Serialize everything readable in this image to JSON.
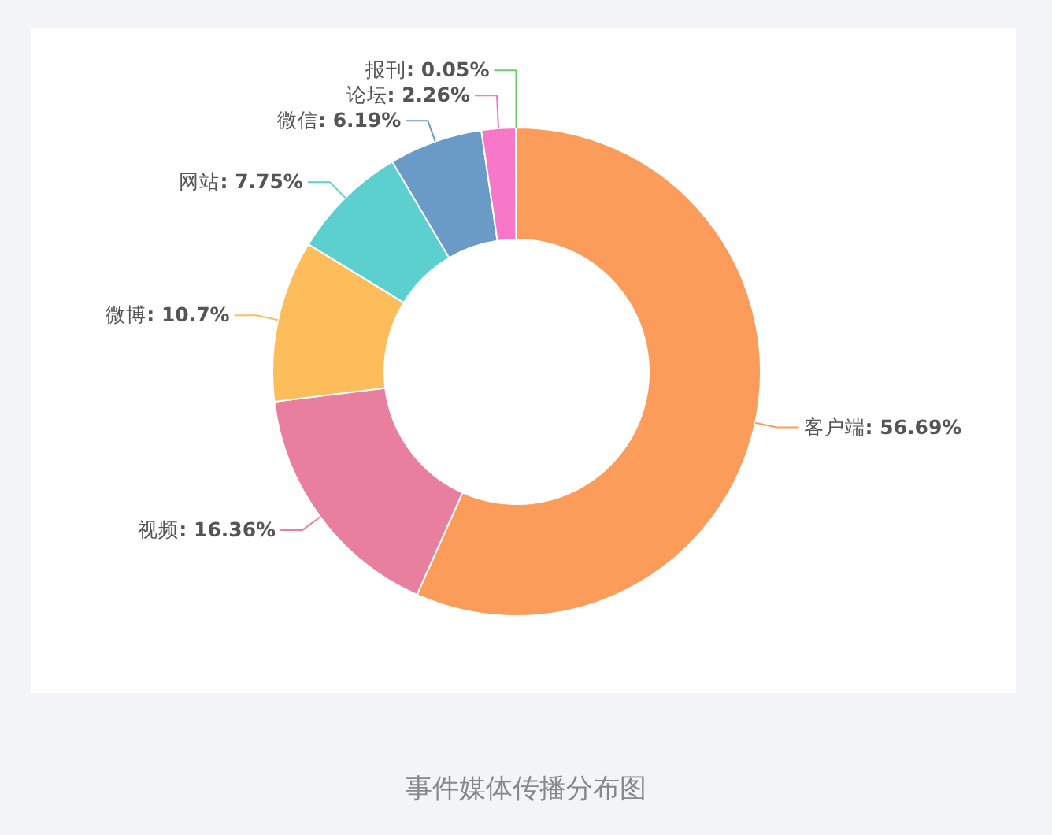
{
  "chart_data": {
    "type": "donut",
    "categories": [
      "客户端",
      "视频",
      "微博",
      "网站",
      "微信",
      "论坛",
      "报刊"
    ],
    "values": [
      56.69,
      16.36,
      10.7,
      7.75,
      6.19,
      2.26,
      0.05
    ],
    "value_labels": [
      ": 56.69%",
      ": 16.36%",
      ": 10.7%",
      ": 7.75%",
      ": 6.19%",
      ": 2.26%",
      ": 0.05%"
    ],
    "colors": [
      "#fb9c5a",
      "#e97f9f",
      "#fdbd5a",
      "#5ccfcf",
      "#6a9bc7",
      "#f777c8",
      "#6fca6f"
    ],
    "annotations": [
      "事件媒体传播分布图"
    ]
  }
}
